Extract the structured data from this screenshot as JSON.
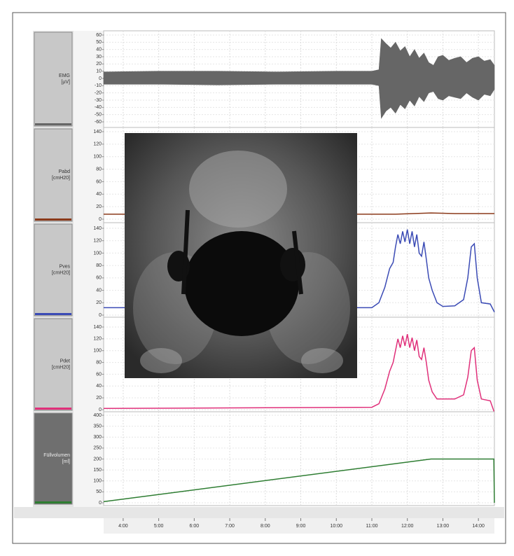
{
  "time_axis": {
    "xlim": [
      207,
      867
    ],
    "xticks": [
      {
        "value": 240,
        "label": "4:00"
      },
      {
        "value": 300,
        "label": "5:00"
      },
      {
        "value": 360,
        "label": "6:00"
      },
      {
        "value": 420,
        "label": "7:00"
      },
      {
        "value": 480,
        "label": "8:00"
      },
      {
        "value": 540,
        "label": "9:00"
      },
      {
        "value": 600,
        "label": "10:00"
      },
      {
        "value": 660,
        "label": "11:00"
      },
      {
        "value": 720,
        "label": "12:00"
      },
      {
        "value": 780,
        "label": "13:00"
      },
      {
        "value": 840,
        "label": "14:00"
      }
    ],
    "grid": true
  },
  "chart_data": [
    {
      "type": "band",
      "label": [
        "EMG",
        "[µV]"
      ],
      "ylim": [
        -60,
        60
      ],
      "yticks": [
        60,
        50,
        40,
        30,
        20,
        10,
        0,
        -10,
        -20,
        -30,
        -40,
        -50,
        -60
      ],
      "grid": true,
      "series": [
        {
          "color": "#666666",
          "x": [
            207,
            300,
            400,
            500,
            600,
            660,
            672,
            676,
            684,
            692,
            700,
            708,
            716,
            724,
            732,
            740,
            748,
            756,
            764,
            772,
            780,
            790,
            800,
            810,
            820,
            830,
            840,
            850,
            860,
            867
          ],
          "values": [
            9,
            10,
            10,
            9,
            10,
            10,
            12,
            55,
            48,
            42,
            50,
            38,
            44,
            30,
            40,
            28,
            35,
            22,
            18,
            30,
            32,
            25,
            28,
            30,
            22,
            28,
            30,
            24,
            26,
            18
          ]
        },
        {
          "color": "#666666",
          "x": [
            207,
            300,
            400,
            500,
            600,
            660,
            672,
            676,
            684,
            692,
            700,
            708,
            716,
            724,
            732,
            740,
            748,
            756,
            764,
            772,
            780,
            790,
            800,
            810,
            820,
            830,
            840,
            850,
            860,
            867
          ],
          "values": [
            -8,
            -8,
            -9,
            -8,
            -8,
            -8,
            -10,
            -55,
            -45,
            -40,
            -48,
            -36,
            -42,
            -30,
            -38,
            -25,
            -32,
            -20,
            -18,
            -28,
            -30,
            -24,
            -26,
            -28,
            -20,
            -26,
            -30,
            -22,
            -24,
            -15
          ]
        }
      ]
    },
    {
      "type": "line",
      "label": [
        "Pabd",
        "[cmH20]"
      ],
      "ylim": [
        0,
        140
      ],
      "yticks": [
        140,
        120,
        100,
        80,
        60,
        40,
        20,
        0
      ],
      "grid": true,
      "series": [
        {
          "color": "#8b3a1a",
          "x": [
            207,
            500,
            700,
            760,
            800,
            867
          ],
          "values": [
            8,
            8,
            8,
            10,
            9,
            9
          ]
        }
      ]
    },
    {
      "type": "line",
      "label": [
        "Pves",
        "[cmH20]"
      ],
      "ylim": [
        0,
        140
      ],
      "yticks": [
        140,
        120,
        100,
        80,
        60,
        40,
        20,
        0
      ],
      "grid": true,
      "series": [
        {
          "color": "#3b4bb5",
          "x": [
            207,
            660,
            672,
            682,
            690,
            696,
            700,
            704,
            708,
            712,
            716,
            720,
            724,
            728,
            732,
            736,
            740,
            744,
            748,
            752,
            756,
            762,
            770,
            780,
            800,
            815,
            822,
            828,
            833,
            838,
            845,
            860,
            867
          ],
          "values": [
            12,
            12,
            20,
            45,
            75,
            85,
            110,
            130,
            115,
            135,
            118,
            138,
            115,
            135,
            110,
            130,
            100,
            95,
            118,
            90,
            60,
            40,
            20,
            14,
            15,
            25,
            60,
            110,
            115,
            60,
            20,
            18,
            5
          ]
        }
      ]
    },
    {
      "type": "line",
      "label": [
        "Pdet",
        "[cmH20]"
      ],
      "ylim": [
        0,
        140
      ],
      "yticks": [
        140,
        120,
        100,
        80,
        60,
        40,
        20,
        0
      ],
      "grid": true,
      "series": [
        {
          "color": "#e0307a",
          "x": [
            207,
            660,
            672,
            682,
            690,
            696,
            700,
            704,
            708,
            712,
            716,
            720,
            724,
            728,
            732,
            736,
            740,
            744,
            748,
            752,
            756,
            762,
            770,
            780,
            800,
            815,
            822,
            828,
            833,
            838,
            845,
            860,
            867
          ],
          "values": [
            2,
            4,
            10,
            35,
            65,
            80,
            100,
            120,
            105,
            125,
            108,
            128,
            105,
            122,
            100,
            118,
            90,
            85,
            105,
            80,
            50,
            30,
            18,
            18,
            18,
            25,
            55,
            100,
            105,
            50,
            18,
            15,
            -5
          ]
        }
      ]
    },
    {
      "type": "line",
      "label": [
        "Füllvolumen",
        "[ml]"
      ],
      "ylim": [
        0,
        400
      ],
      "yticks": [
        400,
        350,
        300,
        250,
        200,
        150,
        100,
        50,
        0
      ],
      "grid": true,
      "series": [
        {
          "color": "#2e7d32",
          "x": [
            207,
            760,
            866,
            867
          ],
          "values": [
            5,
            200,
            200,
            0
          ]
        }
      ]
    }
  ]
}
